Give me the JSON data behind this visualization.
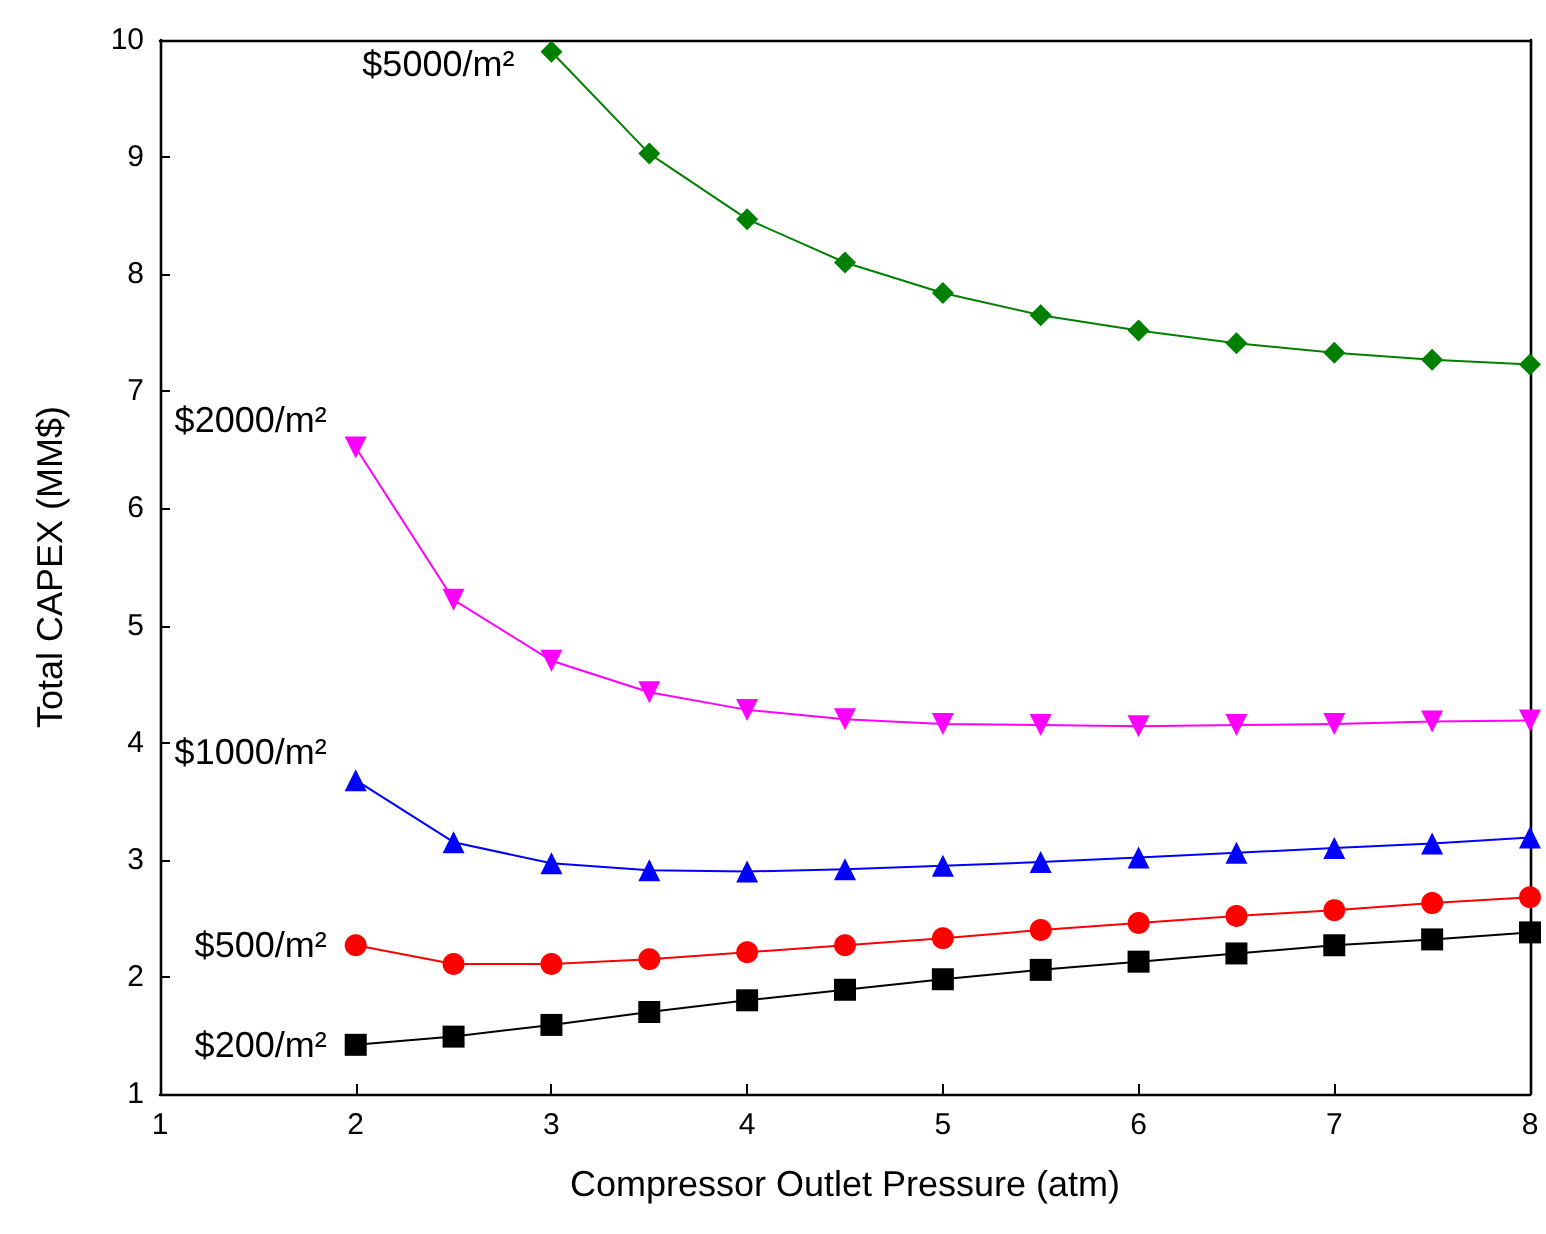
{
  "chart_data": {
    "type": "line",
    "xlabel": "Compressor Outlet Pressure (atm)",
    "ylabel": "Total CAPEX (MM$)",
    "xlim": [
      1,
      8
    ],
    "xticks": [
      1,
      2,
      3,
      4,
      5,
      6,
      7,
      8
    ],
    "ylim": [
      1,
      10
    ],
    "yticks": [
      1,
      2,
      3,
      4,
      5,
      6,
      7,
      8,
      9,
      10
    ],
    "grid": false,
    "line_style": "solid",
    "series": [
      {
        "name": "$5000/m²",
        "color": "#008000",
        "marker": "diamond",
        "x": [
          3,
          3.5,
          4,
          4.5,
          5,
          5.5,
          6,
          6.5,
          7,
          7.5,
          8
        ],
        "values": [
          9.9,
          9.03,
          8.47,
          8.1,
          7.84,
          7.65,
          7.52,
          7.41,
          7.33,
          7.27,
          7.23
        ]
      },
      {
        "name": "$2000/m²",
        "color": "#ff00ff",
        "marker": "triangle-down",
        "x": [
          2,
          2.5,
          3,
          3.5,
          4,
          4.5,
          5,
          5.5,
          6,
          6.5,
          7,
          7.5,
          8
        ],
        "values": [
          6.52,
          5.22,
          4.7,
          4.43,
          4.28,
          4.2,
          4.16,
          4.15,
          4.14,
          4.15,
          4.16,
          4.18,
          4.19
        ]
      },
      {
        "name": "$1000/m²",
        "color": "#0000ff",
        "marker": "triangle",
        "x": [
          2,
          2.5,
          3,
          3.5,
          4,
          4.5,
          5,
          5.5,
          6,
          6.5,
          7,
          7.5,
          8
        ],
        "values": [
          3.68,
          3.15,
          2.97,
          2.91,
          2.9,
          2.92,
          2.95,
          2.98,
          3.02,
          3.06,
          3.1,
          3.14,
          3.19
        ]
      },
      {
        "name": "$500/m²",
        "color": "#ff0000",
        "marker": "circle",
        "x": [
          2,
          2.5,
          3,
          3.5,
          4,
          4.5,
          5,
          5.5,
          6,
          6.5,
          7,
          7.5,
          8
        ],
        "values": [
          2.27,
          2.11,
          2.11,
          2.15,
          2.21,
          2.27,
          2.33,
          2.4,
          2.46,
          2.52,
          2.57,
          2.63,
          2.68
        ]
      },
      {
        "name": "$200/m²",
        "color": "#000000",
        "marker": "square",
        "x": [
          2,
          2.5,
          3,
          3.5,
          4,
          4.5,
          5,
          5.5,
          6,
          6.5,
          7,
          7.5,
          8
        ],
        "values": [
          1.42,
          1.49,
          1.59,
          1.7,
          1.8,
          1.89,
          1.98,
          2.06,
          2.13,
          2.2,
          2.27,
          2.32,
          2.38
        ]
      }
    ]
  }
}
